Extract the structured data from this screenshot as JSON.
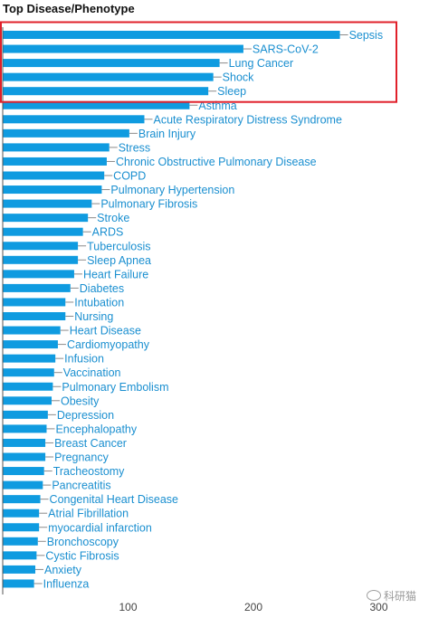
{
  "chart_title": "Top Disease/Phenotype",
  "watermark_text": "科研猫",
  "colors": {
    "bar": "#0f9be0",
    "label": "#1a8fd0",
    "highlight_box": "#e0202a",
    "axis": "#555555"
  },
  "chart_data": {
    "type": "bar",
    "orientation": "horizontal",
    "title": "Top Disease/Phenotype",
    "xlabel": "",
    "ylabel": "",
    "xlim": [
      0,
      310
    ],
    "xticks": [
      100,
      200,
      300
    ],
    "categories": [
      "Sepsis",
      "SARS-CoV-2",
      "Lung Cancer",
      "Shock",
      "Sleep",
      "Asthma",
      "Acute Respiratory Distress Syndrome",
      "Brain Injury",
      "Stress",
      "Chronic Obstructive Pulmonary Disease",
      "COPD",
      "Pulmonary Hypertension",
      "Pulmonary Fibrosis",
      "Stroke",
      "ARDS",
      "Tuberculosis",
      "Sleep Apnea",
      "Heart Failure",
      "Diabetes",
      "Intubation",
      "Nursing",
      "Heart Disease",
      "Cardiomyopathy",
      "Infusion",
      "Vaccination",
      "Pulmonary Embolism",
      "Obesity",
      "Depression",
      "Encephalopathy",
      "Breast Cancer",
      "Pregnancy",
      "Tracheostomy",
      "Pancreatitis",
      "Congenital Heart Disease",
      "Atrial Fibrillation",
      "myocardial infarction",
      "Bronchoscopy",
      "Cystic Fibrosis",
      "Anxiety",
      "Influenza"
    ],
    "values": [
      269,
      192,
      173,
      168,
      164,
      149,
      113,
      101,
      85,
      83,
      81,
      79,
      71,
      68,
      64,
      60,
      60,
      57,
      54,
      50,
      50,
      46,
      44,
      42,
      41,
      40,
      39,
      36,
      35,
      34,
      34,
      33,
      32,
      30,
      29,
      29,
      28,
      27,
      26,
      25
    ],
    "highlighted_categories": [
      "Sepsis",
      "SARS-CoV-2",
      "Lung Cancer",
      "Shock",
      "Sleep"
    ],
    "grid": false,
    "legend": "none"
  }
}
